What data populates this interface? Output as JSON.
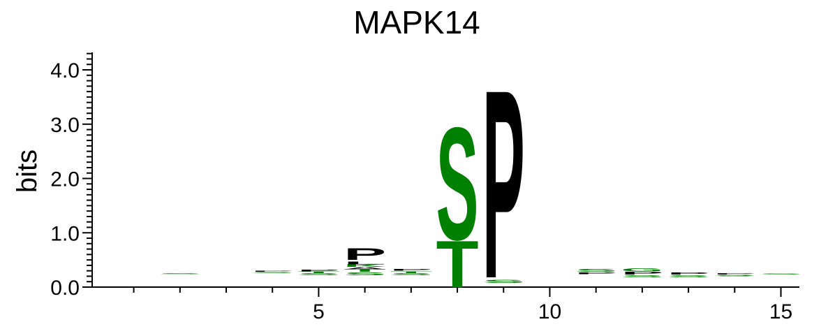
{
  "chart_data": {
    "type": "sequence-logo",
    "title": "MAPK14",
    "ylabel": "bits",
    "xlabel": "",
    "xlim": [
      0.1,
      15.4
    ],
    "ylim": [
      0,
      4.3
    ],
    "x_ticks": [
      5,
      10,
      15
    ],
    "y_ticks": [
      0.0,
      1.0,
      2.0,
      3.0,
      4.0
    ],
    "y_tick_labels": [
      "0.0",
      "1.0",
      "2.0",
      "3.0",
      "4.0"
    ],
    "colors": {
      "polar": "#008000",
      "hydrophobic": "#000000"
    },
    "positions": [
      {
        "pos": 2,
        "letters": [
          {
            "letter": "S",
            "height": 0.02,
            "color": "#008000",
            "base": 0.24
          }
        ]
      },
      {
        "pos": 4,
        "letters": [
          {
            "letter": "S",
            "height": 0.02,
            "color": "#008000",
            "base": 0.26
          },
          {
            "letter": "P",
            "height": 0.02,
            "color": "#000000",
            "base": 0.28
          }
        ]
      },
      {
        "pos": 5,
        "letters": [
          {
            "letter": "S",
            "height": 0.04,
            "color": "#008000",
            "base": 0.22
          },
          {
            "letter": "T",
            "height": 0.03,
            "color": "#008000",
            "base": 0.26
          },
          {
            "letter": "P",
            "height": 0.03,
            "color": "#000000",
            "base": 0.29
          }
        ]
      },
      {
        "pos": 6,
        "letters": [
          {
            "letter": "S",
            "height": 0.05,
            "color": "#008000",
            "base": 0.22
          },
          {
            "letter": "T",
            "height": 0.05,
            "color": "#008000",
            "base": 0.28
          },
          {
            "letter": "A",
            "height": 0.04,
            "color": "#000000",
            "base": 0.33
          },
          {
            "letter": "K",
            "height": 0.05,
            "color": "#008000",
            "base": 0.37
          },
          {
            "letter": "L",
            "height": 0.05,
            "color": "#000000",
            "base": 0.42
          },
          {
            "letter": "P",
            "height": 0.22,
            "color": "#000000",
            "base": 0.5
          }
        ]
      },
      {
        "pos": 7,
        "letters": [
          {
            "letter": "S",
            "height": 0.04,
            "color": "#008000",
            "base": 0.22
          },
          {
            "letter": "T",
            "height": 0.03,
            "color": "#008000",
            "base": 0.26
          },
          {
            "letter": "P",
            "height": 0.03,
            "color": "#000000",
            "base": 0.3
          }
        ]
      },
      {
        "pos": 8,
        "letters": [
          {
            "letter": "T",
            "height": 0.88,
            "color": "#008000",
            "base": 0.0
          },
          {
            "letter": "S",
            "height": 2.12,
            "color": "#008000",
            "base": 0.88
          }
        ]
      },
      {
        "pos": 9,
        "letters": [
          {
            "letter": "S",
            "height": 0.06,
            "color": "#008000",
            "base": 0.08
          },
          {
            "letter": "P",
            "height": 3.55,
            "color": "#000000",
            "base": 0.18
          }
        ]
      },
      {
        "pos": 11,
        "letters": [
          {
            "letter": "P",
            "height": 0.03,
            "color": "#000000",
            "base": 0.24
          },
          {
            "letter": "S",
            "height": 0.05,
            "color": "#008000",
            "base": 0.28
          }
        ]
      },
      {
        "pos": 12,
        "letters": [
          {
            "letter": "S",
            "height": 0.04,
            "color": "#008000",
            "base": 0.18
          },
          {
            "letter": "P",
            "height": 0.05,
            "color": "#000000",
            "base": 0.23
          },
          {
            "letter": "G",
            "height": 0.06,
            "color": "#008000",
            "base": 0.29
          }
        ]
      },
      {
        "pos": 13,
        "letters": [
          {
            "letter": "S",
            "height": 0.04,
            "color": "#008000",
            "base": 0.18
          },
          {
            "letter": "P",
            "height": 0.04,
            "color": "#000000",
            "base": 0.23
          }
        ]
      },
      {
        "pos": 14,
        "letters": [
          {
            "letter": "S",
            "height": 0.03,
            "color": "#008000",
            "base": 0.2
          },
          {
            "letter": "P",
            "height": 0.02,
            "color": "#000000",
            "base": 0.24
          }
        ]
      },
      {
        "pos": 15,
        "letters": [
          {
            "letter": "S",
            "height": 0.02,
            "color": "#008000",
            "base": 0.23
          }
        ]
      }
    ]
  }
}
